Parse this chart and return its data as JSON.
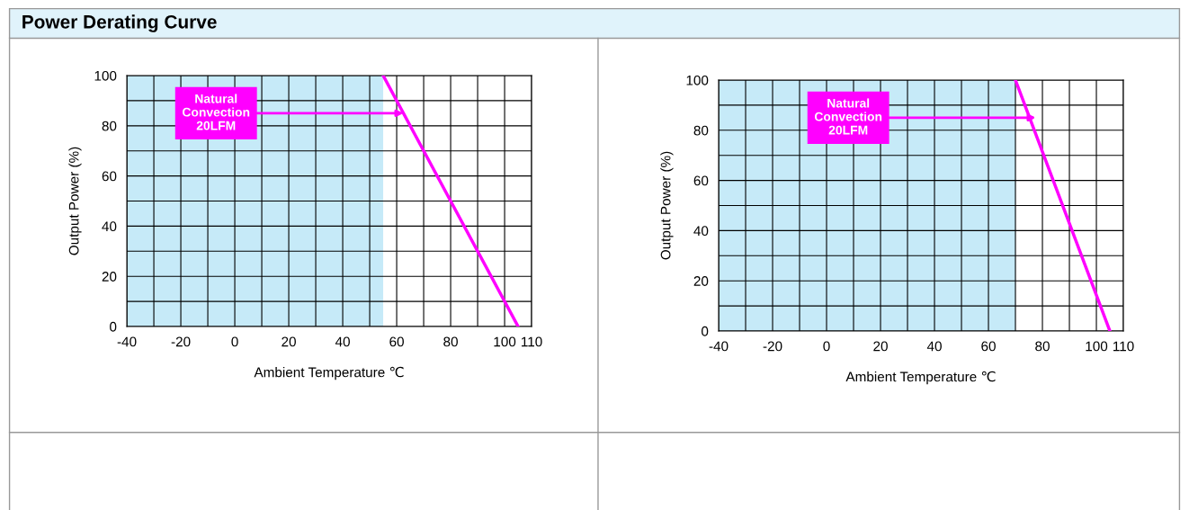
{
  "chart_data": [
    {
      "type": "line",
      "title": "Power Derating Curve",
      "xlabel": "Ambient Temperature ℃",
      "ylabel": "Output Power (%)",
      "x": [
        55,
        105
      ],
      "series": [
        {
          "color": "#ff00ff",
          "values": [
            100,
            0
          ]
        }
      ],
      "xlim": [
        -40,
        110
      ],
      "ylim": [
        0,
        100
      ],
      "xticks": [
        -40,
        {
          "value": -30,
          "label": null
        },
        -20,
        {
          "value": -10,
          "label": null
        },
        0,
        {
          "value": 10,
          "label": null
        },
        20,
        {
          "value": 30,
          "label": null
        },
        40,
        {
          "value": 50,
          "label": null
        },
        60,
        {
          "value": 70,
          "label": null
        },
        80,
        {
          "value": 90,
          "label": null
        },
        100,
        110
      ],
      "yticks": [
        0,
        {
          "value": 10,
          "label": null
        },
        20,
        {
          "value": 30,
          "label": null
        },
        40,
        {
          "value": 50,
          "label": null
        },
        60,
        {
          "value": 70,
          "label": null
        },
        80,
        {
          "value": 90,
          "label": null
        },
        100
      ],
      "bands": [
        {
          "axis": "x",
          "from": -40,
          "to": 55,
          "color": "#c6eaf8"
        }
      ],
      "annotations": [
        {
          "text": "Natural\nConvection\n20LFM",
          "x": 62.5,
          "y": 85
        }
      ],
      "grid": true,
      "legend": false,
      "marker": "none",
      "line_style": "solid"
    },
    {
      "type": "line",
      "xlabel": "Ambient Temperature ℃",
      "ylabel": "Output Power (%)",
      "x": [
        70,
        105
      ],
      "series": [
        {
          "color": "#ff00ff",
          "values": [
            100,
            0
          ]
        }
      ],
      "xlim": [
        -40,
        110
      ],
      "ylim": [
        0,
        100
      ],
      "xticks": [
        -40,
        {
          "value": -30,
          "label": null
        },
        -20,
        {
          "value": -10,
          "label": null
        },
        0,
        {
          "value": 10,
          "label": null
        },
        20,
        {
          "value": 30,
          "label": null
        },
        40,
        {
          "value": 50,
          "label": null
        },
        60,
        {
          "value": 70,
          "label": null
        },
        80,
        {
          "value": 90,
          "label": null
        },
        100,
        110
      ],
      "yticks": [
        0,
        {
          "value": 10,
          "label": null
        },
        20,
        {
          "value": 30,
          "label": null
        },
        40,
        {
          "value": 50,
          "label": null
        },
        60,
        {
          "value": 70,
          "label": null
        },
        80,
        {
          "value": 90,
          "label": null
        },
        100
      ],
      "bands": [
        {
          "axis": "x",
          "from": -40,
          "to": 70,
          "color": "#c6eaf8"
        }
      ],
      "annotations": [
        {
          "text": "Natural\nConvection\n20LFM",
          "x": 77.5,
          "y": 85
        }
      ],
      "grid": true,
      "legend": false,
      "marker": "none",
      "line_style": "solid"
    }
  ]
}
